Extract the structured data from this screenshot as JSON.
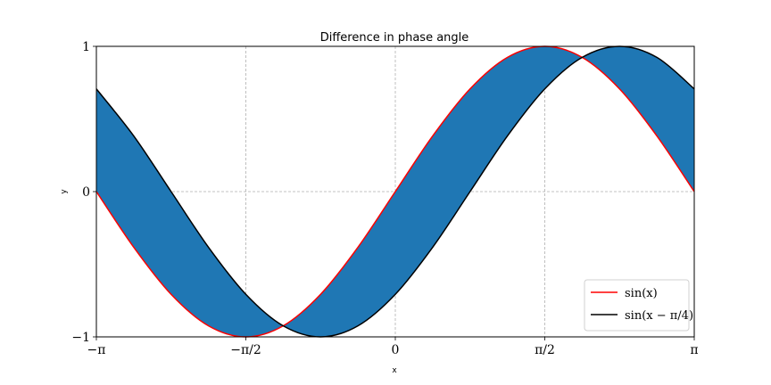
{
  "chart_data": {
    "type": "area",
    "title": "Difference in phase angle",
    "xlabel": "x",
    "ylabel": "y",
    "xlim": [
      -3.14159265,
      3.14159265
    ],
    "ylim": [
      -1,
      1
    ],
    "grid": true,
    "legend_position": "lower right",
    "fill_color": "#1f77b4",
    "xticks": [
      {
        "value": -3.14159265,
        "label": "−π"
      },
      {
        "value": -1.5707963,
        "label": "−π/2"
      },
      {
        "value": 0,
        "label": "0"
      },
      {
        "value": 1.5707963,
        "label": "π/2"
      },
      {
        "value": 3.14159265,
        "label": "π"
      }
    ],
    "yticks": [
      {
        "value": -1,
        "label": "−1"
      },
      {
        "value": 0,
        "label": "0"
      },
      {
        "value": 1,
        "label": "1"
      }
    ],
    "x": [
      -3.1416,
      -2.7489,
      -2.3562,
      -1.9635,
      -1.5708,
      -1.1781,
      -0.7854,
      -0.3927,
      0.0,
      0.3927,
      0.7854,
      1.1781,
      1.5708,
      1.9635,
      2.3562,
      2.7489,
      3.1416
    ],
    "series": [
      {
        "name": "sin(x)",
        "color": "#ff0000",
        "values": [
          0.0,
          -0.383,
          -0.707,
          -0.924,
          -1.0,
          -0.924,
          -0.707,
          -0.383,
          0.0,
          0.383,
          0.707,
          0.924,
          1.0,
          0.924,
          0.707,
          0.383,
          0.0
        ]
      },
      {
        "name": "sin(x − π/4)",
        "color": "#000000",
        "values": [
          0.707,
          0.383,
          0.0,
          -0.383,
          -0.707,
          -0.924,
          -1.0,
          -0.924,
          -0.707,
          -0.383,
          0.0,
          0.383,
          0.707,
          0.924,
          1.0,
          0.924,
          0.707
        ]
      }
    ]
  }
}
